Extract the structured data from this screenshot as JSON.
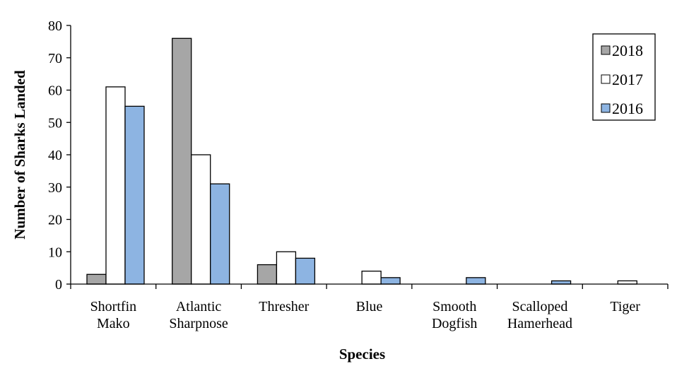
{
  "chart_data": {
    "type": "bar",
    "title": "",
    "xlabel": "Species",
    "ylabel": "Number of Sharks Landed",
    "ylim": [
      0,
      80
    ],
    "yticks": [
      0,
      10,
      20,
      30,
      40,
      50,
      60,
      70,
      80
    ],
    "categories": [
      [
        "Shortfin",
        "Mako"
      ],
      [
        "Atlantic",
        "Sharpnose"
      ],
      [
        "Thresher"
      ],
      [
        "Blue"
      ],
      [
        "Smooth",
        "Dogfish"
      ],
      [
        "Scalloped",
        "Hamerhead"
      ],
      [
        "Tiger"
      ]
    ],
    "series": [
      {
        "name": "2018",
        "color": "#A6A6A6",
        "values": [
          3,
          76,
          6,
          0,
          0,
          0,
          0
        ]
      },
      {
        "name": "2017",
        "color": "#FFFFFF",
        "values": [
          61,
          40,
          10,
          4,
          0,
          0,
          1
        ]
      },
      {
        "name": "2016",
        "color": "#8DB4E2",
        "values": [
          55,
          31,
          8,
          2,
          2,
          1,
          0
        ]
      }
    ],
    "legend_position": "top-right",
    "grid": false
  }
}
